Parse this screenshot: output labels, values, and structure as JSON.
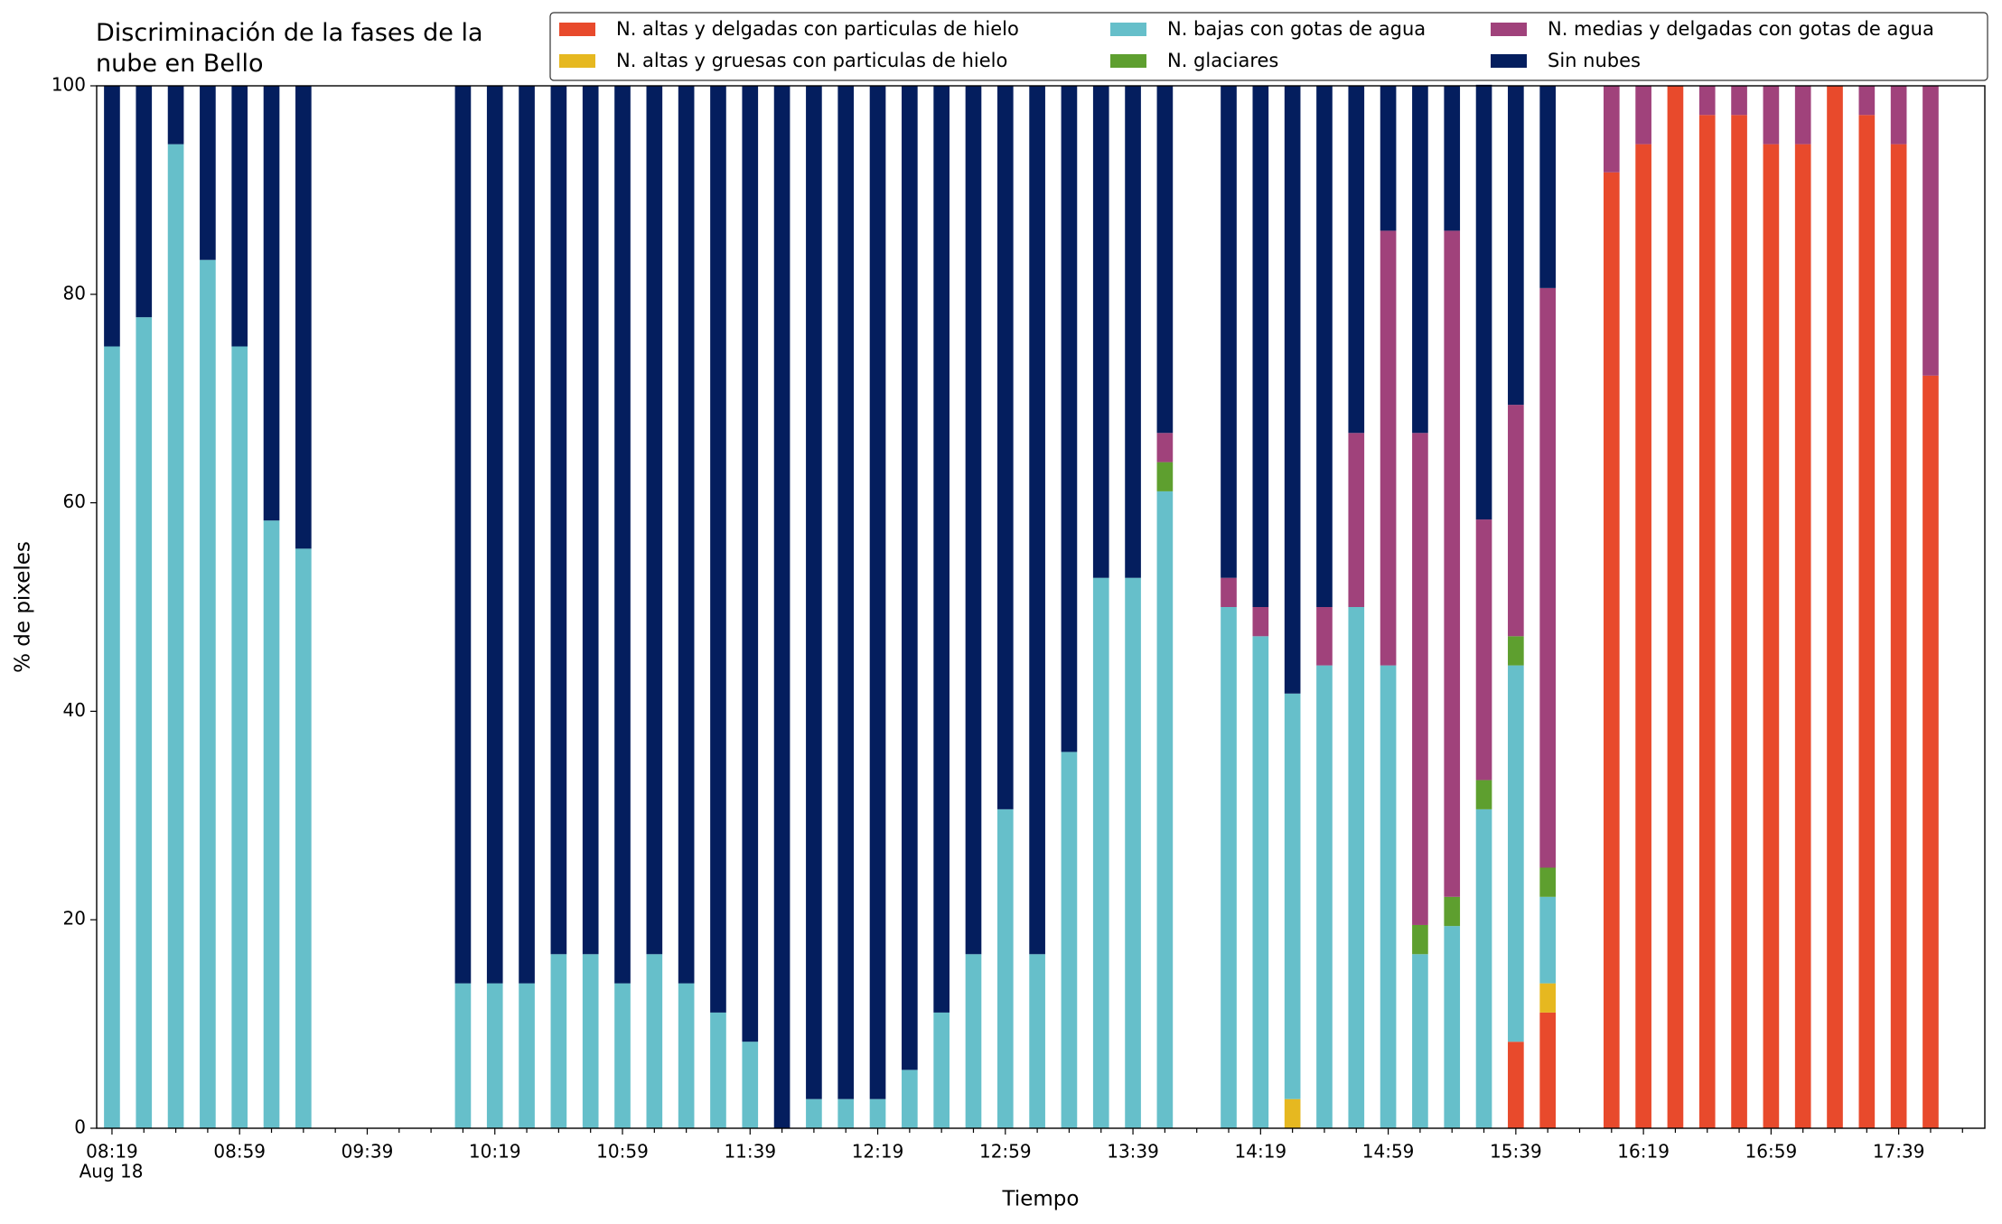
{
  "chart_data": {
    "type": "stacked_bar",
    "title": "Discriminación de la fases de la nube en Bello",
    "x_label": "Tiempo",
    "y_label": "% de pixeles",
    "x_date": "Aug 18",
    "categories": [
      "08:19",
      null,
      null,
      null,
      "08:59",
      null,
      null,
      null,
      "09:39",
      null,
      null,
      null,
      "10:19",
      null,
      null,
      null,
      "10:59",
      null,
      null,
      null,
      "11:39",
      null,
      null,
      null,
      "12:19",
      null,
      null,
      null,
      "12:59",
      null,
      null,
      null,
      "13:39",
      null,
      null,
      null,
      "14:19",
      null,
      null,
      null,
      "14:59",
      null,
      null,
      null,
      "15:39",
      null,
      null,
      null,
      "16:19",
      null,
      null,
      null,
      "16:59",
      null,
      null,
      null,
      "17:39",
      null,
      null
    ],
    "ylim": [
      0,
      100
    ],
    "yticks": [
      0,
      20,
      40,
      60,
      80,
      100
    ],
    "legend": "top-right",
    "series": [
      {
        "name": "N. altas y delgadas con particulas de hielo",
        "color": "#e84a2c",
        "values": [
          0,
          0,
          0,
          0,
          0,
          0,
          0,
          null,
          null,
          null,
          null,
          0,
          0,
          0,
          0,
          0,
          0,
          0,
          0,
          0,
          0,
          0,
          0,
          0,
          0,
          0,
          0,
          0,
          0,
          0,
          0,
          0,
          0,
          0,
          null,
          0,
          0,
          0,
          0,
          0,
          0,
          0,
          0,
          0,
          8.3,
          11.1,
          null,
          91.7,
          94.4,
          100,
          97.2,
          97.2,
          94.4,
          94.4,
          100,
          97.2,
          94.4,
          72.2,
          null
        ]
      },
      {
        "name": "N. altas y gruesas con particulas de hielo",
        "color": "#e6b820",
        "values": [
          0,
          0,
          0,
          0,
          0,
          0,
          0,
          null,
          null,
          null,
          null,
          0,
          0,
          0,
          0,
          0,
          0,
          0,
          0,
          0,
          0,
          0,
          0,
          0,
          0,
          0,
          0,
          0,
          0,
          0,
          0,
          0,
          0,
          0,
          null,
          0,
          0,
          2.8,
          0,
          0,
          0,
          0,
          0,
          0,
          0,
          2.8,
          null,
          0,
          0,
          0,
          0,
          0,
          0,
          0,
          0,
          0,
          0,
          0,
          null
        ]
      },
      {
        "name": "N. bajas con gotas de agua",
        "color": "#66bfca",
        "values": [
          75,
          77.8,
          94.4,
          83.3,
          75,
          58.3,
          55.6,
          null,
          null,
          null,
          null,
          13.9,
          13.9,
          13.9,
          16.7,
          16.7,
          13.9,
          16.7,
          13.9,
          11.1,
          8.3,
          0,
          2.8,
          2.8,
          2.8,
          5.6,
          11.1,
          16.7,
          30.6,
          16.7,
          36.1,
          52.8,
          52.8,
          61.1,
          null,
          50,
          47.2,
          38.9,
          44.4,
          50,
          44.4,
          16.7,
          19.4,
          30.6,
          36.1,
          8.3,
          null,
          0,
          0,
          0,
          0,
          0,
          0,
          0,
          0,
          0,
          0,
          0,
          null
        ]
      },
      {
        "name": "N. glaciares",
        "color": "#5e9f2f",
        "values": [
          0,
          0,
          0,
          0,
          0,
          0,
          0,
          null,
          null,
          null,
          null,
          0,
          0,
          0,
          0,
          0,
          0,
          0,
          0,
          0,
          0,
          0,
          0,
          0,
          0,
          0,
          0,
          0,
          0,
          0,
          0,
          0,
          0,
          2.8,
          null,
          0,
          0,
          0,
          0,
          0,
          0,
          2.8,
          2.8,
          2.8,
          2.8,
          2.8,
          null,
          0,
          0,
          0,
          0,
          0,
          0,
          0,
          0,
          0,
          0,
          0,
          null
        ]
      },
      {
        "name": "N. medias y delgadas con gotas de agua",
        "color": "#a0427b",
        "values": [
          0,
          0,
          0,
          0,
          0,
          0,
          0,
          null,
          null,
          null,
          null,
          0,
          0,
          0,
          0,
          0,
          0,
          0,
          0,
          0,
          0,
          0,
          0,
          0,
          0,
          0,
          0,
          0,
          0,
          0,
          0,
          0,
          0,
          2.8,
          null,
          2.8,
          2.8,
          0,
          5.6,
          16.7,
          41.7,
          47.2,
          63.9,
          25,
          22.2,
          55.6,
          null,
          8.3,
          5.6,
          0,
          2.8,
          2.8,
          5.6,
          5.6,
          0,
          2.8,
          5.6,
          27.8,
          null
        ]
      },
      {
        "name": "Sin nubes",
        "color": "#041e5e",
        "values": [
          25,
          22.2,
          5.6,
          16.7,
          25,
          41.7,
          44.4,
          null,
          null,
          null,
          null,
          86.1,
          86.1,
          86.1,
          83.3,
          83.3,
          86.1,
          83.3,
          86.1,
          88.9,
          91.7,
          100,
          97.2,
          97.2,
          97.2,
          94.4,
          88.9,
          83.3,
          69.4,
          83.3,
          63.9,
          47.2,
          47.2,
          33.3,
          null,
          47.2,
          50,
          58.3,
          50,
          33.3,
          13.9,
          33.3,
          13.9,
          41.7,
          30.6,
          19.4,
          null,
          0,
          0,
          0,
          0,
          0,
          0,
          0,
          0,
          0,
          0,
          0,
          null
        ]
      }
    ]
  }
}
